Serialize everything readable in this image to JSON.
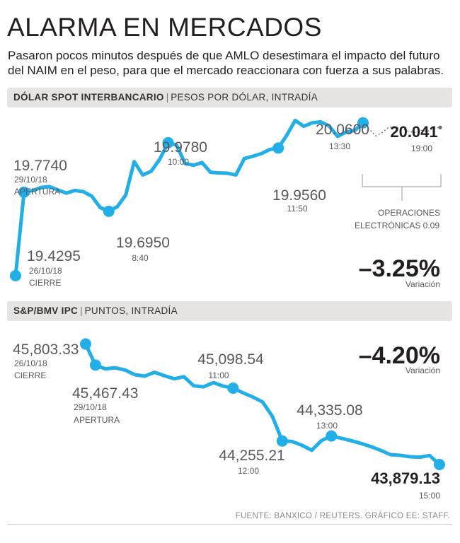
{
  "title": "ALARMA EN MERCADOS",
  "subtitle": "Pasaron pocos minutos después de que AMLO desestimara el impacto del futuro del NAIM en el peso, para que el mercado reaccionara con fuerza a sus palabras.",
  "footer": "FUENTE: BANXICO / REUTERS. GRÁFICO EE: STAFF.",
  "colors": {
    "line": "#22aee6",
    "dotted": "#6d6e71",
    "text": "#231f20",
    "muted": "#58595b",
    "band": "#e6e4e3"
  },
  "chart_data": [
    {
      "type": "line",
      "band_title": "DÓLAR SPOT INTERBANCARIO",
      "band_unit": "PESOS POR DÓLAR, INTRADÍA",
      "ylim": [
        19.4,
        20.1
      ],
      "series": [
        {
          "name": "Intradía",
          "values": [
            19.4295,
            19.774,
            19.78,
            19.793,
            19.797,
            19.783,
            19.77,
            19.781,
            19.776,
            19.757,
            19.71,
            19.695,
            19.714,
            19.762,
            19.9,
            19.845,
            19.86,
            19.909,
            19.978,
            19.968,
            19.892,
            19.885,
            19.896,
            19.856,
            19.853,
            19.852,
            19.845,
            19.913,
            19.922,
            19.933,
            19.95,
            19.956,
            20.009,
            20.07,
            20.046,
            20.06,
            20.064,
            20.047,
            20.004,
            20.022,
            20.028,
            20.06
          ]
        },
        {
          "name": "Operaciones electrónicas",
          "values": [
            20.06,
            20.033,
            20.006,
            20.02,
            20.042,
            20.039,
            20.037,
            20.026,
            20.02,
            20.029,
            20.024,
            20.039,
            20.041
          ]
        }
      ],
      "annotations": [
        {
          "value": "19.7740",
          "date": "29/10/18",
          "label": "APERTURA"
        },
        {
          "value": "19.4295",
          "date": "26/10/18",
          "label": "CIERRE"
        },
        {
          "value": "19.6950",
          "label": "8:40"
        },
        {
          "value": "19.9780",
          "label": "10:00"
        },
        {
          "value": "19.9560",
          "label": "11:50"
        },
        {
          "value": "20.0600",
          "label": "13:30"
        },
        {
          "value": "20.041",
          "label": "19:00"
        }
      ],
      "note": [
        "OPERACIONES",
        "ELECTRÓNICAS 0.09"
      ],
      "change": "–3.25%",
      "change_label": "Variación"
    },
    {
      "type": "line",
      "band_title": "S&P/BMV IPC",
      "band_unit": "PUNTOS, INTRADÍA",
      "ylim": [
        43800,
        45900
      ],
      "series": [
        {
          "name": "Intradía",
          "values": [
            45803.33,
            45467.43,
            45406,
            45424,
            45389,
            45314,
            45290,
            45352,
            45297,
            45249,
            45281,
            45136,
            45120,
            45187,
            45131,
            45098.54,
            45025,
            44958,
            44879,
            44648,
            44255.21,
            44247,
            44187,
            44106,
            44262,
            44335.08,
            44299,
            44261,
            44216,
            44167,
            44107,
            44037,
            44026,
            44003,
            43996,
            44022,
            43879.13
          ]
        }
      ],
      "annotations": [
        {
          "value": "45,803.33",
          "date": "26/10/18",
          "label": "CIERRE"
        },
        {
          "value": "45,467.43",
          "date": "29/10/18",
          "label": "APERTURA"
        },
        {
          "value": "45,098.54",
          "label": "11:00"
        },
        {
          "value": "44,255.21",
          "label": "12:00"
        },
        {
          "value": "44,335.08",
          "label": "13:00"
        },
        {
          "value": "43,879.13",
          "label": "15:00"
        }
      ],
      "change": "–4.20%",
      "change_label": "Variación"
    }
  ]
}
